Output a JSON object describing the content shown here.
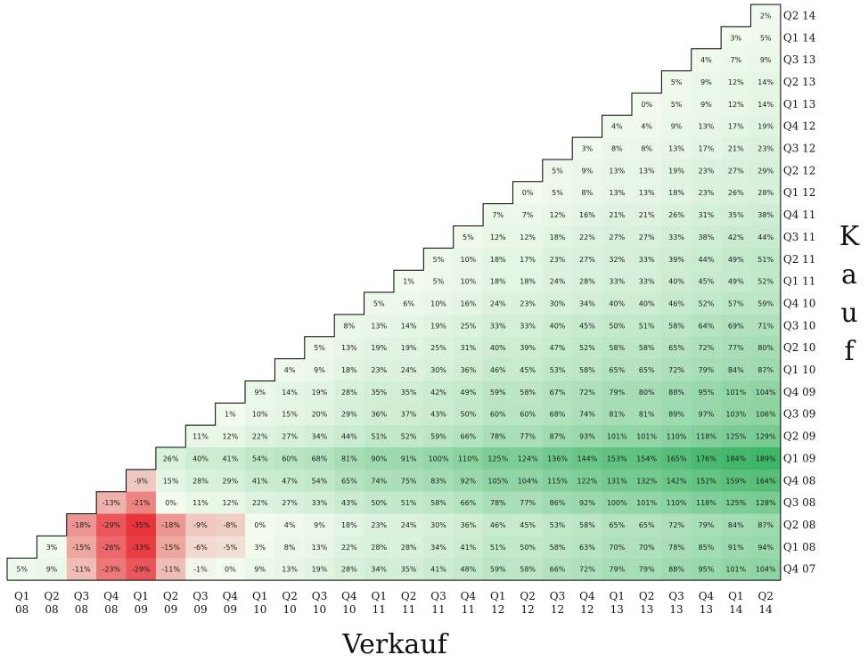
{
  "chart_data": {
    "type": "heatmap",
    "xlabel": "Verkauf",
    "ylabel": "Kauf",
    "x_ticks": [
      [
        "Q1",
        "08"
      ],
      [
        "Q2",
        "08"
      ],
      [
        "Q3",
        "08"
      ],
      [
        "Q4",
        "08"
      ],
      [
        "Q1",
        "09"
      ],
      [
        "Q2",
        "09"
      ],
      [
        "Q3",
        "09"
      ],
      [
        "Q4",
        "09"
      ],
      [
        "Q1",
        "10"
      ],
      [
        "Q2",
        "10"
      ],
      [
        "Q3",
        "10"
      ],
      [
        "Q4",
        "10"
      ],
      [
        "Q1",
        "11"
      ],
      [
        "Q2",
        "11"
      ],
      [
        "Q3",
        "11"
      ],
      [
        "Q4",
        "11"
      ],
      [
        "Q1",
        "12"
      ],
      [
        "Q2",
        "12"
      ],
      [
        "Q3",
        "12"
      ],
      [
        "Q4",
        "12"
      ],
      [
        "Q1",
        "13"
      ],
      [
        "Q2",
        "13"
      ],
      [
        "Q3",
        "13"
      ],
      [
        "Q4",
        "13"
      ],
      [
        "Q1",
        "14"
      ],
      [
        "Q2",
        "14"
      ]
    ],
    "y_ticks": [
      "Q2 14",
      "Q1 14",
      "Q3 13",
      "Q2 13",
      "Q1 13",
      "Q4 12",
      "Q3 12",
      "Q2 12",
      "Q1 12",
      "Q4 11",
      "Q3 11",
      "Q2 11",
      "Q1 11",
      "Q4 10",
      "Q3 10",
      "Q2 10",
      "Q1 10",
      "Q4 09",
      "Q3 09",
      "Q2 09",
      "Q1 09",
      "Q4 08",
      "Q3 08",
      "Q2 08",
      "Q1 08",
      "Q4 07"
    ],
    "rows": [
      [
        2
      ],
      [
        3,
        5
      ],
      [
        4,
        7,
        9
      ],
      [
        5,
        9,
        12,
        14
      ],
      [
        0,
        5,
        9,
        12,
        14
      ],
      [
        4,
        4,
        9,
        13,
        17,
        19
      ],
      [
        3,
        8,
        8,
        13,
        17,
        21,
        23
      ],
      [
        5,
        9,
        13,
        13,
        19,
        23,
        27,
        29
      ],
      [
        0,
        5,
        8,
        13,
        13,
        18,
        23,
        26,
        28
      ],
      [
        7,
        7,
        12,
        16,
        21,
        21,
        26,
        31,
        35,
        38
      ],
      [
        5,
        12,
        12,
        18,
        22,
        27,
        27,
        33,
        38,
        42,
        44
      ],
      [
        5,
        10,
        18,
        17,
        23,
        27,
        32,
        33,
        39,
        44,
        49,
        51
      ],
      [
        1,
        5,
        10,
        18,
        18,
        24,
        28,
        33,
        33,
        40,
        45,
        49,
        52
      ],
      [
        5,
        6,
        10,
        16,
        24,
        23,
        30,
        34,
        40,
        40,
        46,
        52,
        57,
        59
      ],
      [
        8,
        13,
        14,
        19,
        25,
        33,
        33,
        40,
        45,
        50,
        51,
        58,
        64,
        69,
        71
      ],
      [
        5,
        13,
        19,
        19,
        25,
        31,
        40,
        39,
        47,
        52,
        58,
        58,
        65,
        72,
        77,
        80
      ],
      [
        4,
        9,
        18,
        23,
        24,
        30,
        36,
        46,
        45,
        53,
        58,
        65,
        65,
        72,
        79,
        84,
        87
      ],
      [
        9,
        14,
        19,
        28,
        35,
        35,
        42,
        49,
        59,
        58,
        67,
        72,
        79,
        80,
        88,
        95,
        101,
        104
      ],
      [
        1,
        10,
        15,
        20,
        29,
        36,
        37,
        43,
        50,
        60,
        60,
        68,
        74,
        81,
        81,
        89,
        97,
        103,
        106
      ],
      [
        11,
        12,
        22,
        27,
        34,
        44,
        51,
        52,
        59,
        66,
        78,
        77,
        87,
        93,
        101,
        101,
        110,
        118,
        125,
        129
      ],
      [
        26,
        40,
        41,
        54,
        60,
        68,
        81,
        90,
        91,
        100,
        110,
        125,
        124,
        136,
        144,
        153,
        154,
        165,
        176,
        184,
        189
      ],
      [
        -9,
        15,
        28,
        29,
        41,
        47,
        54,
        65,
        74,
        75,
        83,
        92,
        105,
        104,
        115,
        122,
        131,
        132,
        142,
        152,
        159,
        164
      ],
      [
        -13,
        -21,
        0,
        11,
        12,
        22,
        27,
        33,
        43,
        50,
        51,
        58,
        66,
        78,
        77,
        86,
        92,
        100,
        101,
        110,
        118,
        125,
        128
      ],
      [
        -18,
        -29,
        -35,
        -18,
        -9,
        -8,
        0,
        4,
        9,
        18,
        23,
        24,
        30,
        36,
        46,
        45,
        53,
        58,
        65,
        65,
        72,
        79,
        84,
        87
      ],
      [
        3,
        -15,
        -26,
        -33,
        -15,
        -6,
        -5,
        3,
        8,
        13,
        22,
        28,
        28,
        34,
        41,
        51,
        50,
        58,
        63,
        70,
        70,
        78,
        85,
        91,
        94
      ],
      [
        5,
        9,
        -11,
        -23,
        -29,
        -11,
        -1,
        0,
        9,
        13,
        19,
        28,
        34,
        35,
        41,
        48,
        59,
        58,
        66,
        72,
        79,
        79,
        88,
        95,
        101,
        104
      ]
    ],
    "value_suffix": "%",
    "colors": {
      "negative": "#e8343a",
      "zero": "#f3fbef",
      "positive": "#3fb567",
      "border": "#000000"
    }
  }
}
